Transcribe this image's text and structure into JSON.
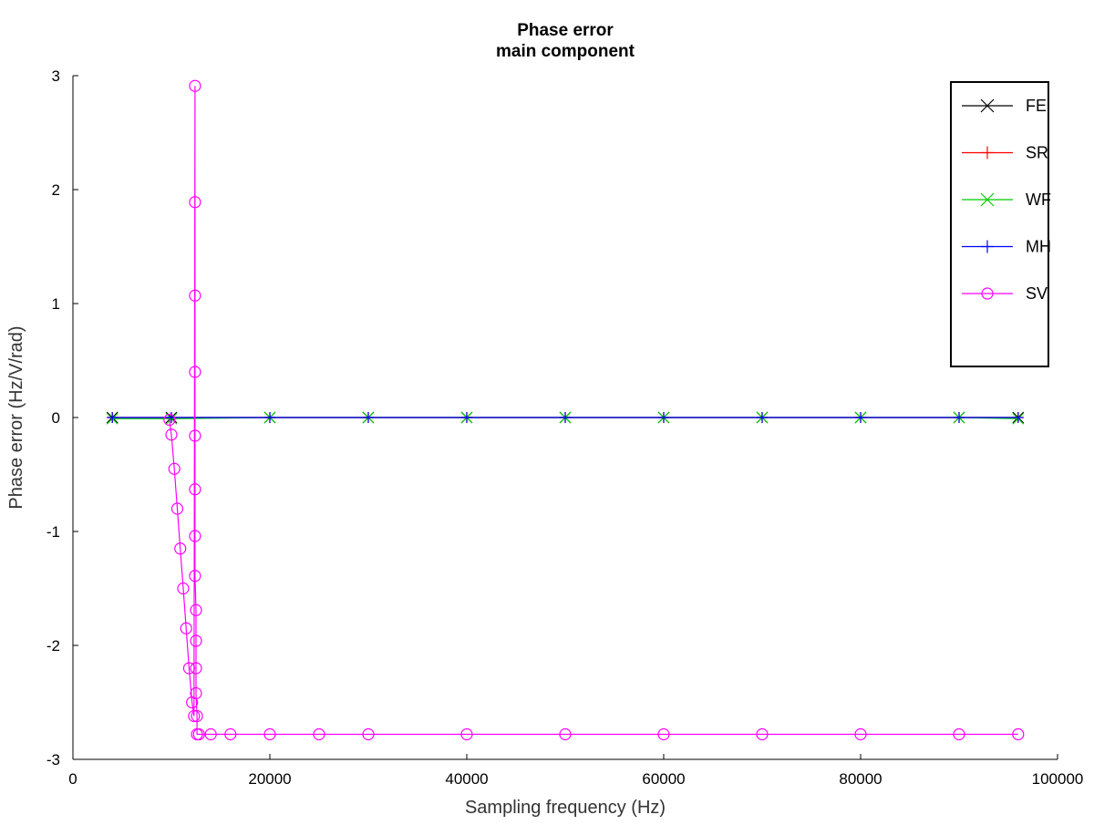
{
  "chart_data": {
    "type": "line",
    "title": "Phase error",
    "subtitle": "main component",
    "xlabel": "Sampling frequency (Hz)",
    "ylabel": "Phase error (Hz/V/rad)",
    "xlim": [
      0,
      100000
    ],
    "ylim": [
      -3,
      3
    ],
    "x_ticks": [
      0,
      20000,
      40000,
      60000,
      80000,
      100000
    ],
    "y_ticks": [
      -3,
      -2,
      -1,
      0,
      1,
      2,
      3
    ],
    "grid": false,
    "legend_position": "top-right",
    "series": [
      {
        "name": "FE",
        "color": "#000000",
        "marker": "x",
        "x": [
          4000,
          10000,
          20000,
          30000,
          40000,
          50000,
          60000,
          70000,
          80000,
          90000,
          96000
        ],
        "y": [
          0,
          0,
          0,
          0,
          0,
          0,
          0,
          0,
          0,
          0,
          0
        ]
      },
      {
        "name": "SR",
        "color": "#ff0000",
        "marker": "plus",
        "x": [
          4000,
          10000,
          20000,
          30000,
          40000,
          50000,
          60000,
          70000,
          80000,
          90000,
          96000
        ],
        "y": [
          0,
          0,
          0,
          0,
          0,
          0,
          0,
          0,
          0,
          0,
          0
        ]
      },
      {
        "name": "WF",
        "color": "#00cc00",
        "marker": "x",
        "x": [
          4000,
          10000,
          20000,
          30000,
          40000,
          50000,
          60000,
          70000,
          80000,
          90000,
          96000
        ],
        "y": [
          -0.01,
          -0.01,
          0,
          0,
          0,
          0,
          0,
          0,
          0,
          0,
          -0.01
        ]
      },
      {
        "name": "MH",
        "color": "#0000ff",
        "marker": "plus",
        "x": [
          4000,
          10000,
          20000,
          30000,
          40000,
          50000,
          60000,
          70000,
          80000,
          90000,
          96000
        ],
        "y": [
          0,
          0,
          0,
          0,
          0,
          0,
          0,
          0,
          0,
          0,
          0
        ]
      },
      {
        "name": "SV",
        "color": "#ff00ff",
        "marker": "circle",
        "x": [
          9800,
          10000,
          10300,
          10600,
          10900,
          11200,
          11500,
          11800,
          12100,
          12300,
          12400,
          12400,
          12400,
          12400,
          12400,
          12400,
          12400,
          12400,
          12500,
          12500,
          12500,
          12500,
          12600,
          12600,
          12800,
          14000,
          16000,
          20000,
          25000,
          30000,
          40000,
          50000,
          60000,
          70000,
          80000,
          90000,
          96000
        ],
        "y": [
          -0.02,
          -0.15,
          -0.45,
          -0.8,
          -1.15,
          -1.5,
          -1.85,
          -2.2,
          -2.5,
          -2.62,
          2.91,
          1.89,
          1.07,
          0.4,
          -0.16,
          -0.63,
          -1.04,
          -1.39,
          -1.69,
          -1.96,
          -2.2,
          -2.42,
          -2.62,
          -2.78,
          -2.78,
          -2.78,
          -2.78,
          -2.78,
          -2.78,
          -2.78,
          -2.78,
          -2.78,
          -2.78,
          -2.78,
          -2.78,
          -2.78,
          -2.78
        ]
      }
    ]
  }
}
